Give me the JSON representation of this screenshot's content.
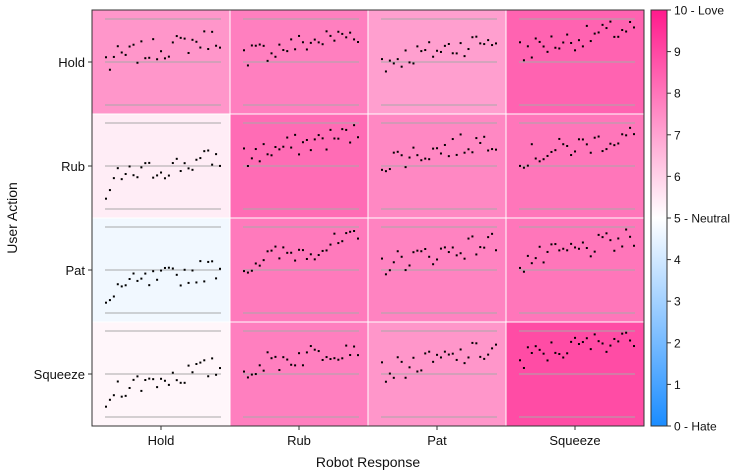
{
  "chart_data": {
    "type": "heatmap",
    "title": "",
    "xlabel": "Robot Response",
    "ylabel": "User Action",
    "x_categories": [
      "Hold",
      "Rub",
      "Pat",
      "Squeeze"
    ],
    "y_categories": [
      "Hold",
      "Rub",
      "Pat",
      "Squeeze"
    ],
    "colorbar": {
      "range": [
        0,
        10
      ],
      "ticks": [
        "0 - Hate",
        "1",
        "2",
        "3",
        "4",
        "5 - Neutral",
        "6",
        "7",
        "8",
        "9",
        "10 - Love"
      ],
      "colors": {
        "low": "#1a8cff",
        "mid": "#ffffff",
        "high": "#ff1a8c"
      }
    },
    "cell_values": [
      [
        7.3,
        7.8,
        7.1,
        8.4
      ],
      [
        5.4,
        8.2,
        7.6,
        8.0
      ],
      [
        4.7,
        7.9,
        7.7,
        8.0
      ],
      [
        5.2,
        7.8,
        7.3,
        8.9
      ]
    ],
    "inset_scatter": {
      "y_range": [
        0,
        10
      ],
      "reference_lines": [
        0,
        5,
        10
      ],
      "samples_per_cell": 30
    }
  }
}
